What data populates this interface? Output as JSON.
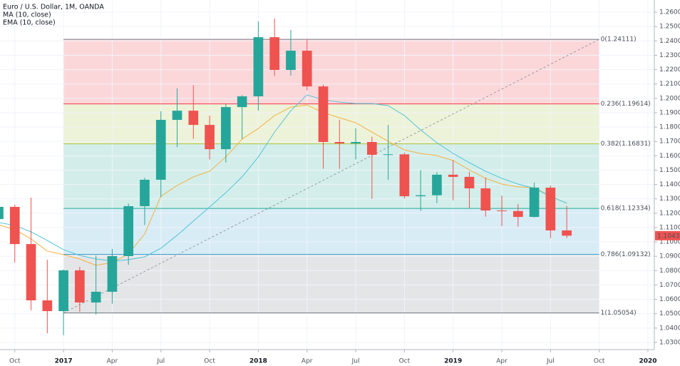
{
  "chart_data": {
    "type": "candlestick",
    "title": "Euro / U.S. Dollar, 1M, OANDA",
    "x": [
      "2016-09",
      "2016-10",
      "2016-11",
      "2016-12",
      "2017-01",
      "2017-02",
      "2017-03",
      "2017-04",
      "2017-05",
      "2017-06",
      "2017-07",
      "2017-08",
      "2017-09",
      "2017-10",
      "2017-11",
      "2017-12",
      "2018-01",
      "2018-02",
      "2018-03",
      "2018-04",
      "2018-05",
      "2018-06",
      "2018-07",
      "2018-08",
      "2018-09",
      "2018-10",
      "2018-11",
      "2018-12",
      "2019-01",
      "2019-02",
      "2019-03",
      "2019-04",
      "2019-05",
      "2019-06",
      "2019-07",
      "2019-08"
    ],
    "open": [
      1.1159,
      1.1244,
      1.0985,
      1.0593,
      1.0518,
      1.0802,
      1.0578,
      1.0653,
      1.0901,
      1.1249,
      1.1433,
      1.185,
      1.1914,
      1.1815,
      1.1646,
      1.1939,
      1.2014,
      1.2426,
      1.2198,
      1.2332,
      1.2083,
      1.1696,
      1.1686,
      1.1696,
      1.1607,
      1.161,
      1.1318,
      1.1325,
      1.1468,
      1.1453,
      1.1373,
      1.1219,
      1.1215,
      1.1174,
      1.1378,
      1.108
    ],
    "high": [
      1.127,
      1.126,
      1.1308,
      1.0876,
      1.0807,
      1.0826,
      1.0906,
      1.0951,
      1.1268,
      1.1446,
      1.191,
      1.207,
      1.2092,
      1.188,
      1.1961,
      1.2023,
      1.2537,
      1.2556,
      1.2476,
      1.2414,
      1.2096,
      1.1851,
      1.1791,
      1.1733,
      1.1815,
      1.1622,
      1.15,
      1.1486,
      1.157,
      1.1488,
      1.1448,
      1.1323,
      1.1264,
      1.1413,
      1.1392,
      1.125
    ],
    "low": [
      1.11,
      1.0856,
      1.0524,
      1.0364,
      1.035,
      1.0513,
      1.0494,
      1.057,
      1.084,
      1.1118,
      1.1312,
      1.166,
      1.1718,
      1.1574,
      1.1554,
      1.1717,
      1.1915,
      1.2155,
      1.2158,
      1.2055,
      1.151,
      1.1508,
      1.1575,
      1.1301,
      1.1433,
      1.1302,
      1.1216,
      1.127,
      1.129,
      1.1234,
      1.1176,
      1.1111,
      1.1107,
      1.117,
      1.1027,
      1.1027
    ],
    "close": [
      1.1244,
      1.0985,
      1.0593,
      1.0518,
      1.0802,
      1.0578,
      1.0653,
      1.0901,
      1.1249,
      1.1433,
      1.185,
      1.1914,
      1.1815,
      1.1646,
      1.1939,
      1.2014,
      1.2426,
      1.2198,
      1.2332,
      1.2083,
      1.1696,
      1.1686,
      1.1696,
      1.1607,
      1.161,
      1.1318,
      1.1325,
      1.1468,
      1.1453,
      1.1373,
      1.1219,
      1.1215,
      1.1174,
      1.1378,
      1.108,
      1.10434
    ],
    "up_color": "#26a69a",
    "down_color": "#ef5350",
    "series": [
      {
        "name": "MA (10, close)",
        "color": "#f5b041",
        "values": [
          1.112,
          1.1085,
          1.1021,
          1.0936,
          1.0911,
          1.0881,
          1.0837,
          1.0856,
          1.0916,
          1.1055,
          1.1318,
          1.1393,
          1.1453,
          1.1492,
          1.1592,
          1.1716,
          1.179,
          1.188,
          1.1939,
          1.1954,
          1.19,
          1.1865,
          1.183,
          1.1765,
          1.1701,
          1.1641,
          1.1616,
          1.1601,
          1.1567,
          1.1502,
          1.1443,
          1.1403,
          1.1383,
          1.1378,
          1.1318,
          1.1269
        ]
      },
      {
        "name": "EMA (10, close)",
        "color": "#4fc3d9",
        "values": [
          1.1135,
          1.1115,
          1.107,
          1.101,
          1.0946,
          1.0906,
          1.0881,
          1.0866,
          1.0876,
          1.0896,
          1.0956,
          1.1046,
          1.1145,
          1.1244,
          1.1343,
          1.1453,
          1.1592,
          1.1765,
          1.1914,
          1.2024,
          1.1989,
          1.1974,
          1.1964,
          1.1964,
          1.1949,
          1.188,
          1.178,
          1.1691,
          1.1616,
          1.1552,
          1.1492,
          1.1443,
          1.1403,
          1.1373,
          1.1318,
          1.1269
        ]
      }
    ],
    "fib_range": [
      "2017-01",
      "2019-10"
    ],
    "fib_levels": [
      {
        "label": "0(1.24111)",
        "price": 1.24111,
        "color": "#787b86"
      },
      {
        "label": "0.236(1.19614)",
        "price": 1.19614,
        "color": "#f23645"
      },
      {
        "label": "0.382(1.16831)",
        "price": 1.16831,
        "color": "#a5c43a"
      },
      {
        "label": "0.618(1.12334)",
        "price": 1.12334,
        "color": "#22ab94"
      },
      {
        "label": "0.786(1.09132)",
        "price": 1.09132,
        "color": "#3d9fd1"
      },
      {
        "label": "1(1.05054)",
        "price": 1.05054,
        "color": "#787b86"
      }
    ],
    "xlim": [
      "2016-09",
      "2020-01"
    ],
    "xticks": [
      {
        "value": "2016-10",
        "label": "Oct"
      },
      {
        "value": "2017-01",
        "label": "2017"
      },
      {
        "value": "2017-04",
        "label": "Apr"
      },
      {
        "value": "2017-07",
        "label": "Jul"
      },
      {
        "value": "2017-10",
        "label": "Oct"
      },
      {
        "value": "2018-01",
        "label": "2018"
      },
      {
        "value": "2018-04",
        "label": "Apr"
      },
      {
        "value": "2018-07",
        "label": "Jul"
      },
      {
        "value": "2018-10",
        "label": "Oct"
      },
      {
        "value": "2019-01",
        "label": "2019"
      },
      {
        "value": "2019-04",
        "label": "Apr"
      },
      {
        "value": "2019-07",
        "label": "Jul"
      },
      {
        "value": "2019-10",
        "label": "Oct"
      },
      {
        "value": "2020-01",
        "label": "2020"
      }
    ],
    "ylim": [
      1.025,
      1.2685
    ],
    "yticks": [
      {
        "value": 1.03,
        "label": "1.03000"
      },
      {
        "value": 1.04,
        "label": "1.04000"
      },
      {
        "value": 1.05,
        "label": "1.05000"
      },
      {
        "value": 1.06,
        "label": "1.06000"
      },
      {
        "value": 1.07,
        "label": "1.07000"
      },
      {
        "value": 1.08,
        "label": "1.08000"
      },
      {
        "value": 1.09,
        "label": "1.09000"
      },
      {
        "value": 1.1,
        "label": "1.10000"
      },
      {
        "value": 1.11,
        "label": "1.11000"
      },
      {
        "value": 1.12,
        "label": "1.12000"
      },
      {
        "value": 1.13,
        "label": "1.13000"
      },
      {
        "value": 1.14,
        "label": "1.14000"
      },
      {
        "value": 1.15,
        "label": "1.15000"
      },
      {
        "value": 1.16,
        "label": "1.16000"
      },
      {
        "value": 1.17,
        "label": "1.17000"
      },
      {
        "value": 1.18,
        "label": "1.18000"
      },
      {
        "value": 1.19,
        "label": "1.19000"
      },
      {
        "value": 1.2,
        "label": "1.20000"
      },
      {
        "value": 1.21,
        "label": "1.21000"
      },
      {
        "value": 1.22,
        "label": "1.22000"
      },
      {
        "value": 1.23,
        "label": "1.23000"
      },
      {
        "value": 1.24,
        "label": "1.24000"
      },
      {
        "value": 1.25,
        "label": "1.25000"
      },
      {
        "value": 1.26,
        "label": "1.26000"
      }
    ],
    "grid": true
  }
}
